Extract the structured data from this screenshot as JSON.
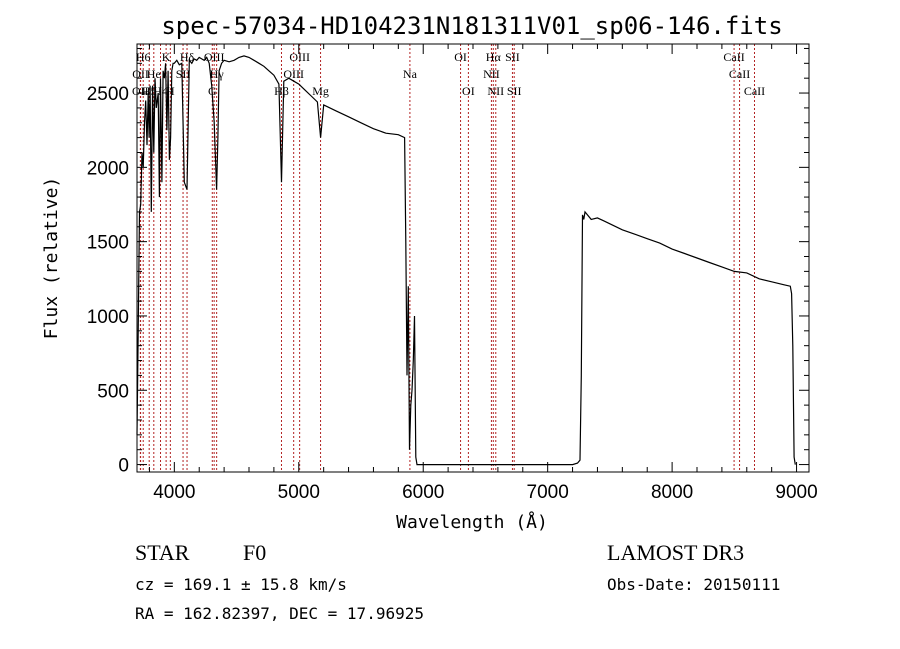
{
  "chart_data": {
    "type": "line",
    "title": "spec-57034-HD104231N181311V01_sp06-146.fits",
    "xlabel": "Wavelength (Å)",
    "ylabel": "Flux (relative)",
    "xlim": [
      3700,
      9100
    ],
    "ylim": [
      -50,
      2830
    ],
    "x_ticks": [
      4000,
      5000,
      6000,
      7000,
      8000,
      9000
    ],
    "y_ticks": [
      0,
      500,
      1000,
      1500,
      2000,
      2500
    ],
    "x_minor_step": 200,
    "y_minor_step": 100,
    "grid": false,
    "colors": {
      "spectrum": "#000000",
      "lines": "#b22222",
      "frame": "#000000"
    },
    "series": [
      {
        "x": [
          3700,
          3710,
          3720,
          3730,
          3740,
          3750,
          3760,
          3770,
          3780,
          3790,
          3797,
          3805,
          3815,
          3825,
          3835,
          3845,
          3855,
          3870,
          3880,
          3889,
          3900,
          3910,
          3920,
          3930,
          3940,
          3950,
          3960,
          3970,
          3980,
          3990,
          4000,
          4020,
          4040,
          4060,
          4080,
          4102,
          4120,
          4140,
          4160,
          4180,
          4200,
          4220,
          4240,
          4260,
          4280,
          4300,
          4320,
          4340,
          4350,
          4360,
          4380,
          4400,
          4440,
          4480,
          4520,
          4560,
          4600,
          4640,
          4680,
          4720,
          4760,
          4800,
          4840,
          4861,
          4880,
          4920,
          4960,
          5000,
          5050,
          5100,
          5150,
          5175,
          5200,
          5300,
          5400,
          5500,
          5600,
          5700,
          5800,
          5850,
          5860,
          5870,
          5880,
          5890,
          5900,
          5910,
          5920,
          5930,
          5940,
          5950,
          6000,
          6200,
          6400,
          6600,
          6800,
          7000,
          7200,
          7240,
          7260,
          7270,
          7280,
          7290,
          7300,
          7350,
          7400,
          7450,
          7500,
          7600,
          7700,
          7800,
          7900,
          8000,
          8100,
          8200,
          8300,
          8400,
          8500,
          8600,
          8700,
          8800,
          8900,
          8950,
          8960,
          8970,
          8980,
          8990
        ],
        "y": [
          200,
          900,
          1700,
          1750,
          2100,
          2000,
          2300,
          2450,
          2150,
          2500,
          2200,
          2550,
          1700,
          2550,
          2100,
          2600,
          2400,
          2500,
          1800,
          2600,
          1900,
          2650,
          2600,
          2700,
          2250,
          2650,
          2050,
          2200,
          2650,
          2700,
          2700,
          2720,
          2690,
          2700,
          1900,
          1850,
          2720,
          2700,
          2730,
          2720,
          2740,
          2730,
          2720,
          2740,
          2700,
          2550,
          2300,
          1850,
          2200,
          2650,
          2700,
          2720,
          2710,
          2720,
          2740,
          2750,
          2740,
          2720,
          2700,
          2680,
          2650,
          2620,
          2560,
          1900,
          2580,
          2600,
          2580,
          2560,
          2520,
          2480,
          2440,
          2200,
          2420,
          2380,
          2340,
          2300,
          2260,
          2230,
          2220,
          2200,
          1500,
          600,
          1200,
          100,
          400,
          500,
          700,
          1000,
          50,
          0,
          0,
          0,
          0,
          0,
          0,
          0,
          0,
          10,
          30,
          600,
          1680,
          1650,
          1700,
          1650,
          1660,
          1640,
          1620,
          1580,
          1550,
          1520,
          1490,
          1450,
          1420,
          1390,
          1360,
          1330,
          1300,
          1290,
          1250,
          1230,
          1210,
          1200,
          1150,
          800,
          50,
          0
        ]
      }
    ],
    "emission_lines": [
      {
        "label": "OII",
        "x": 3727,
        "row": 3
      },
      {
        "label": "OII",
        "x": 3729,
        "row": 2
      },
      {
        "label": "H6",
        "x": 3750,
        "row": 1
      },
      {
        "label": "H5",
        "x": 3798,
        "row": 3
      },
      {
        "label": "He",
        "x": 3835,
        "row": 2
      },
      {
        "label": "H4",
        "x": 3889,
        "row": 3
      },
      {
        "label": "K",
        "x": 3934,
        "row": 1
      },
      {
        "label": "H",
        "x": 3968,
        "row": 3
      },
      {
        "label": "SII",
        "x": 4070,
        "row": 2
      },
      {
        "label": "Hδ",
        "x": 4102,
        "row": 1
      },
      {
        "label": "G",
        "x": 4305,
        "row": 3
      },
      {
        "label": "OIII",
        "x": 4320,
        "row": 1
      },
      {
        "label": "Hγ",
        "x": 4340,
        "row": 2
      },
      {
        "label": "Hβ",
        "x": 4861,
        "row": 3
      },
      {
        "label": "OIII",
        "x": 4959,
        "row": 2
      },
      {
        "label": "OIII",
        "x": 5007,
        "row": 1
      },
      {
        "label": "Mg",
        "x": 5175,
        "row": 3
      },
      {
        "label": "Na",
        "x": 5893,
        "row": 2
      },
      {
        "label": "OI",
        "x": 6300,
        "row": 1
      },
      {
        "label": "OI",
        "x": 6363,
        "row": 3
      },
      {
        "label": "NII",
        "x": 6548,
        "row": 2
      },
      {
        "label": "Hα",
        "x": 6563,
        "row": 1
      },
      {
        "label": "NII",
        "x": 6583,
        "row": 3
      },
      {
        "label": "SII",
        "x": 6717,
        "row": 1
      },
      {
        "label": "SII",
        "x": 6731,
        "row": 3
      },
      {
        "label": "CaII",
        "x": 8498,
        "row": 1
      },
      {
        "label": "CaII",
        "x": 8542,
        "row": 2
      },
      {
        "label": "CaII",
        "x": 8662,
        "row": 3
      }
    ]
  },
  "info": {
    "class": "STAR",
    "subclass": "F0",
    "survey": "LAMOST DR3",
    "cz": "cz = 169.1 ± 15.8 km/s",
    "obs_date": "Obs-Date: 20150111",
    "coords": "RA = 162.82397, DEC =  17.96925"
  }
}
